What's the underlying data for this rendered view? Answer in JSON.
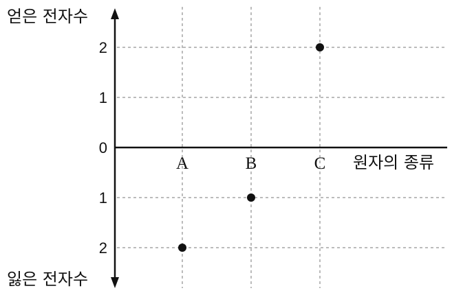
{
  "chart_data": {
    "type": "scatter",
    "title": "",
    "y_axis": {
      "top_label": "얻은 전자수",
      "bottom_label": "잃은 전자수",
      "ticks": [
        {
          "label": "2",
          "value": 2
        },
        {
          "label": "1",
          "value": 1
        },
        {
          "label": "0",
          "value": 0
        },
        {
          "label": "1",
          "value": -1
        },
        {
          "label": "2",
          "value": -2
        }
      ],
      "ylim": [
        -2,
        2
      ]
    },
    "x_axis": {
      "label": "원자의 종류",
      "categories": [
        "A",
        "B",
        "C"
      ]
    },
    "points": [
      {
        "category": "A",
        "value": -2
      },
      {
        "category": "B",
        "value": -1
      },
      {
        "category": "C",
        "value": 2
      }
    ],
    "grid": true
  }
}
